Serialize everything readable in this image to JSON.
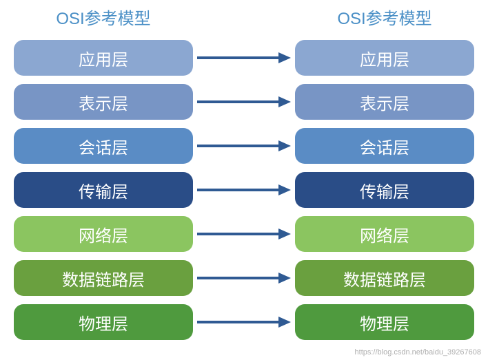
{
  "diagram": {
    "type": "flowchart",
    "left_title": "OSI参考模型",
    "right_title": "OSI参考模型",
    "title_color": "#4a8fc6",
    "title_fontsize": 24,
    "arrow_color": "#2f5a93",
    "arrow_stroke_width": 4,
    "background_color": "#ffffff",
    "layer_width": 260,
    "layer_height": 52,
    "layer_border_radius": 14,
    "layer_fontsize": 24,
    "layer_text_color": "#ffffff",
    "layers": [
      {
        "label": "应用层",
        "color": "#8ba7d1"
      },
      {
        "label": "表示层",
        "color": "#7895c5"
      },
      {
        "label": "会话层",
        "color": "#5a8cc5"
      },
      {
        "label": "传输层",
        "color": "#2a4d87"
      },
      {
        "label": "网络层",
        "color": "#8bc560"
      },
      {
        "label": "数据链路层",
        "color": "#6aa03f"
      },
      {
        "label": "物理层",
        "color": "#4f9a3e"
      }
    ],
    "watermark": "https://blog.csdn.net/baidu_39267608"
  }
}
